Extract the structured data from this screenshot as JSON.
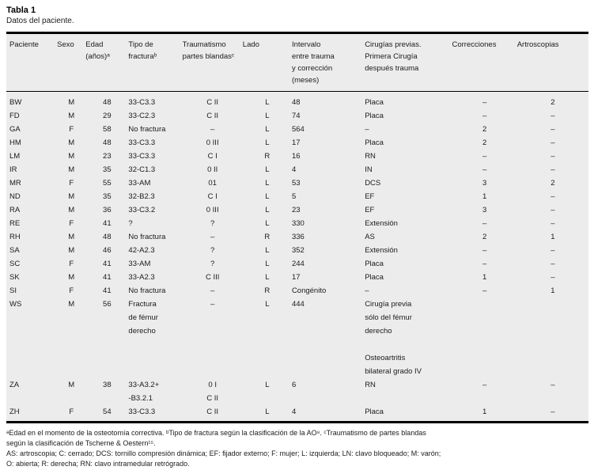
{
  "title": "Tabla 1",
  "subtitle": "Datos del paciente.",
  "colors": {
    "band_background": "#ececec",
    "text": "#1b1b1b",
    "rule": "#000000"
  },
  "table": {
    "columns": [
      {
        "key": "paciente",
        "label": "Paciente",
        "align": "left"
      },
      {
        "key": "sexo",
        "label": "Sexo",
        "align": "center"
      },
      {
        "key": "edad",
        "label": "Edad\n(años)ᵃ",
        "align": "center"
      },
      {
        "key": "tipo-fractura",
        "label": "Tipo de\nfracturaᵇ",
        "align": "left"
      },
      {
        "key": "traumatismo",
        "label": "Traumatismo\npartes blandasᶜ",
        "align": "center"
      },
      {
        "key": "lado",
        "label": "Lado",
        "align": "center"
      },
      {
        "key": "intervalo",
        "label": "Intervalo\nentre trauma\ny corrección\n(meses)",
        "align": "left"
      },
      {
        "key": "cirugias-previas",
        "label": "Cirugías previas.\nPrimera Cirugía\ndespués trauma",
        "align": "left"
      },
      {
        "key": "correcciones",
        "label": "Correcciones",
        "align": "center"
      },
      {
        "key": "artroscopias",
        "label": "Artroscopias",
        "align": "center"
      }
    ],
    "rows": [
      [
        "BW",
        "M",
        "48",
        "33-C3.3",
        "C II",
        "L",
        "48",
        "Placa",
        "–",
        "2"
      ],
      [
        "FD",
        "M",
        "29",
        "33-C2.3",
        "C II",
        "L",
        "74",
        "Placa",
        "–",
        "–"
      ],
      [
        "GA",
        "F",
        "58",
        "No fractura",
        "–",
        "L",
        "564",
        "–",
        "2",
        "–"
      ],
      [
        "HM",
        "M",
        "48",
        "33-C3.3",
        "0 III",
        "L",
        "17",
        "Placa",
        "2",
        "–"
      ],
      [
        "LM",
        "M",
        "23",
        "33-C3.3",
        "C I",
        "R",
        "16",
        "RN",
        "–",
        "–"
      ],
      [
        "IR",
        "M",
        "35",
        "32-C1.3",
        "0 II",
        "L",
        "4",
        "IN",
        "–",
        "–"
      ],
      [
        "MR",
        "F",
        "55",
        "33-AM",
        "01",
        "L",
        "53",
        "DCS",
        "3",
        "2"
      ],
      [
        "ND",
        "M",
        "35",
        "32-B2.3",
        "C I",
        "L",
        "5",
        "EF",
        "1",
        "–"
      ],
      [
        "RA",
        "M",
        "36",
        "33-C3.2",
        "0 III",
        "L",
        "23",
        "EF",
        "3",
        "–"
      ],
      [
        "RE",
        "F",
        "41",
        "?",
        "?",
        "L",
        "330",
        "Extensión",
        "–",
        "–"
      ],
      [
        "RH",
        "M",
        "48",
        "No fractura",
        "–",
        "R",
        "336",
        "AS",
        "2",
        "1"
      ],
      [
        "SA",
        "M",
        "46",
        "42-A2.3",
        "?",
        "L",
        "352",
        "Extensión",
        "–",
        "–"
      ],
      [
        "SC",
        "F",
        "41",
        "33-AM",
        "?",
        "L",
        "244",
        "Placa",
        "–",
        "–"
      ],
      [
        "SK",
        "M",
        "41",
        "33-A2.3",
        "C III",
        "L",
        "17",
        "Placa",
        "1",
        "–"
      ],
      [
        "SI",
        "F",
        "41",
        "No fractura",
        "–",
        "R",
        "Congénito",
        "–",
        "–",
        "1"
      ],
      [
        "WS",
        "M",
        "56",
        "Fractura\nde fémur\nderecho",
        "–",
        "L",
        "444",
        "Cirugía previa\nsólo del fémur\nderecho\n\nOsteoartritis\nbilateral grado IV",
        "",
        ""
      ],
      [
        "ZA",
        "M",
        "38",
        "33-A3.2+\n-B3.2.1",
        "0 I\nC II",
        "L",
        "6",
        "RN",
        "–",
        "–"
      ],
      [
        "ZH",
        "F",
        "54",
        "33-C3.3",
        "C II",
        "L",
        "4",
        "Placa",
        "1",
        "–"
      ]
    ]
  },
  "footnotes": {
    "definitions": "ᵃEdad en el momento de la osteotomía correctiva. ᵇTipo de fractura según la clasificación de la AO⁸. ᶜTraumatismo de partes blandas\nsegún la clasificación de Tscherne & Oestern¹⁵.",
    "abbreviations": "AS: artroscopia; C: cerrado; DCS: tornillo compresión dinámica; EF: fijador externo; F: mujer; L: izquierda; LN: clavo bloqueado; M: varón;\nO: abierta; R: derecha; RN: clavo intramedular retrógrado."
  }
}
